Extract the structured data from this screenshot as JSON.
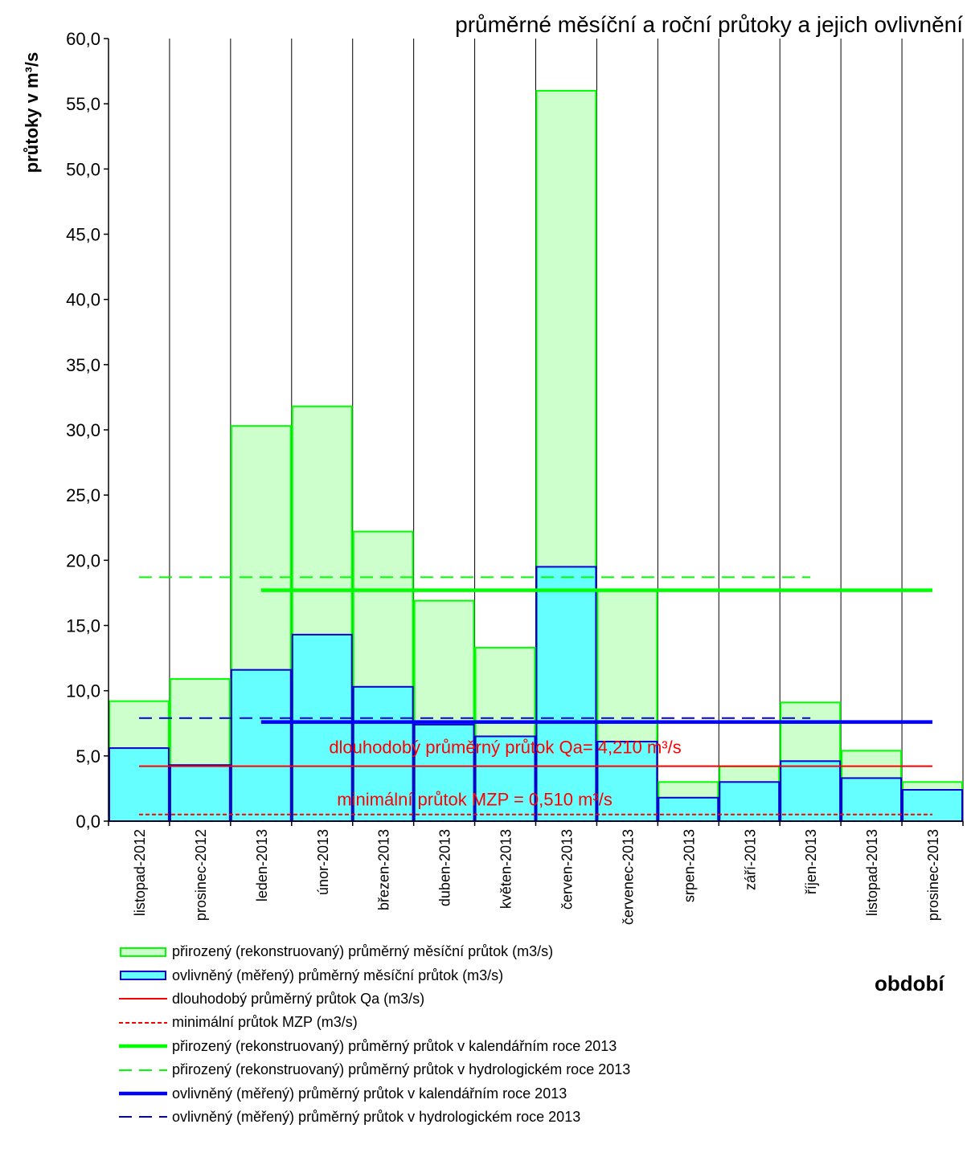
{
  "chart_data": {
    "type": "bar",
    "title": "průměrné měsíční a roční průtoky a jejich  ovlivnění",
    "ylabel": "průtoky v m³/s",
    "xlabel": "období",
    "ylim": [
      0,
      60
    ],
    "yticks": [
      "0,0",
      "5,0",
      "10,0",
      "15,0",
      "20,0",
      "25,0",
      "30,0",
      "35,0",
      "40,0",
      "45,0",
      "50,0",
      "55,0",
      "60,0"
    ],
    "ytick_values": [
      0,
      5,
      10,
      15,
      20,
      25,
      30,
      35,
      40,
      45,
      50,
      55,
      60
    ],
    "categories": [
      "listopad-2012",
      "prosinec-2012",
      "leden-2013",
      "únor-2013",
      "březen-2013",
      "duben-2013",
      "květen-2013",
      "červen-2013",
      "červenec-2013",
      "srpen-2013",
      "září-2013",
      "říjen-2013",
      "listopad-2013",
      "prosinec-2013"
    ],
    "series": [
      {
        "name": "přirozený (rekonstruovaný) průměrný měsíční průtok (m3/s)",
        "kind": "bar",
        "fill": "#ccffcc",
        "stroke": "#00ff00",
        "values": [
          9.2,
          10.9,
          30.3,
          31.8,
          22.2,
          16.9,
          13.3,
          56.0,
          17.7,
          3.0,
          4.2,
          9.1,
          5.4,
          3.0
        ]
      },
      {
        "name": "ovlivněný (měřený) průměrný měsíční průtok (m3/s)",
        "kind": "bar",
        "fill": "#66ffff",
        "stroke": "#0000cc",
        "values": [
          5.6,
          4.3,
          11.6,
          14.3,
          10.3,
          7.4,
          6.5,
          19.5,
          6.1,
          1.8,
          3.0,
          4.6,
          3.3,
          2.4
        ]
      },
      {
        "name": "dlouhodobý průměrný průtok Qa (m3/s)",
        "kind": "hline",
        "value": 4.21,
        "color": "#ff0000",
        "style": "solid",
        "from": 0.5,
        "to": 13.5
      },
      {
        "name": "minimální průtok MZP (m3/s)",
        "kind": "hline",
        "value": 0.51,
        "color": "#ff0000",
        "style": "dotted",
        "from": 0.5,
        "to": 13.5
      },
      {
        "name": "přirozený (rekonstruovaný) průměrný průtok v kalendářním roce 2013",
        "kind": "hline",
        "value": 17.7,
        "color": "#00ff00",
        "style": "thick",
        "from": 2.5,
        "to": 13.5
      },
      {
        "name": "přirozený (rekonstruovaný) průměrný průtok v hydrologickém roce 2013",
        "kind": "hline",
        "value": 18.7,
        "color": "#00ff00",
        "style": "dashed",
        "from": 0.5,
        "to": 11.5
      },
      {
        "name": "ovlivněný (měřený) průměrný průtok v kalendářním roce 2013",
        "kind": "hline",
        "value": 7.6,
        "color": "#0000ff",
        "style": "thick",
        "from": 2.5,
        "to": 13.5
      },
      {
        "name": "ovlivněný (měřený) průměrný průtok v hydrologickém roce 2013",
        "kind": "hline",
        "value": 7.9,
        "color": "#0000cc",
        "style": "dashed",
        "from": 0.5,
        "to": 11.5
      }
    ],
    "annotations": [
      {
        "text": "dlouhodobý průměrný  průtok Qa= 4,210 m³/s",
        "x": 6.5,
        "y": 5.2,
        "color": "#ff0000"
      },
      {
        "text": "minimální průtok MZP = 0,510 m³/s",
        "x": 6.0,
        "y": 1.2,
        "color": "#ff0000"
      }
    ],
    "grid": {
      "vertical": true,
      "horizontal": false
    },
    "legend_position": "bottom"
  }
}
